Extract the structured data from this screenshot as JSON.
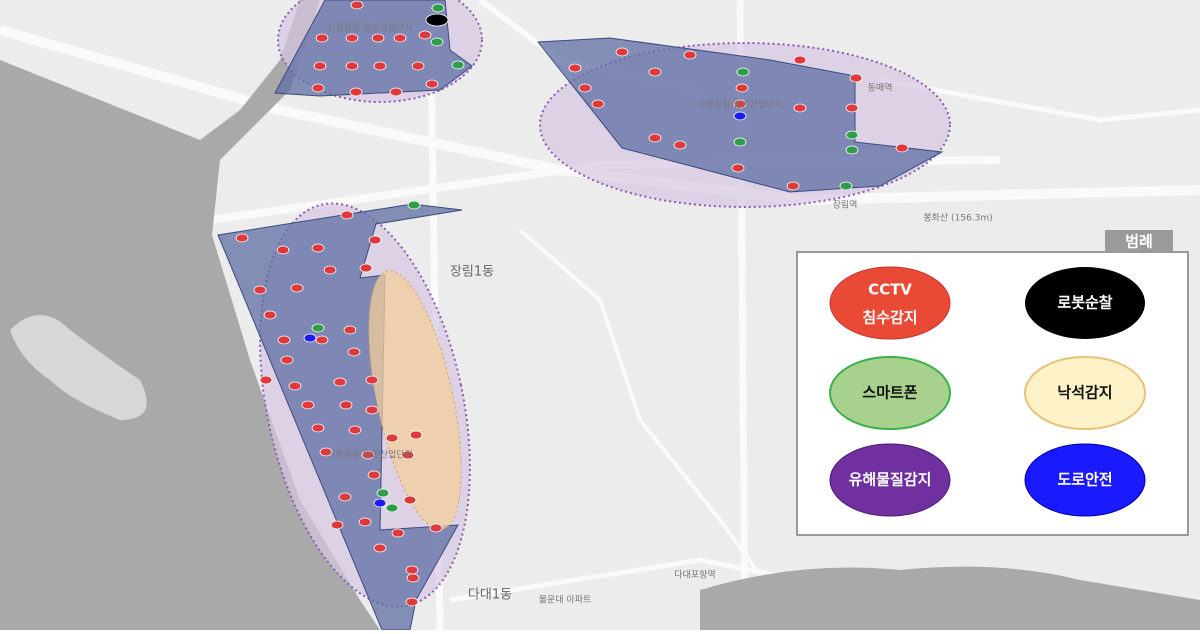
{
  "map": {
    "labels": [
      {
        "text": "신평장림 일반산업단지"
      },
      {
        "text": "신평장림 일반산업단지"
      },
      {
        "text": "신평장림 일반산업단지"
      },
      {
        "text": "장림1동"
      },
      {
        "text": "다대1동"
      },
      {
        "text": "장림역"
      },
      {
        "text": "다대포항역"
      },
      {
        "text": "봉화산 (156.3m)"
      },
      {
        "text": "동매역"
      },
      {
        "text": "몰운대 아파트"
      }
    ]
  },
  "legend": {
    "title": "범례",
    "items": [
      {
        "lines": [
          "CCTV",
          "침수감지"
        ]
      },
      {
        "lines": [
          "로봇순찰"
        ]
      },
      {
        "lines": [
          "스마트폰"
        ]
      },
      {
        "lines": [
          "낙석감지"
        ]
      },
      {
        "lines": [
          "유해물질감지"
        ]
      },
      {
        "lines": [
          "도로안전"
        ]
      }
    ]
  }
}
